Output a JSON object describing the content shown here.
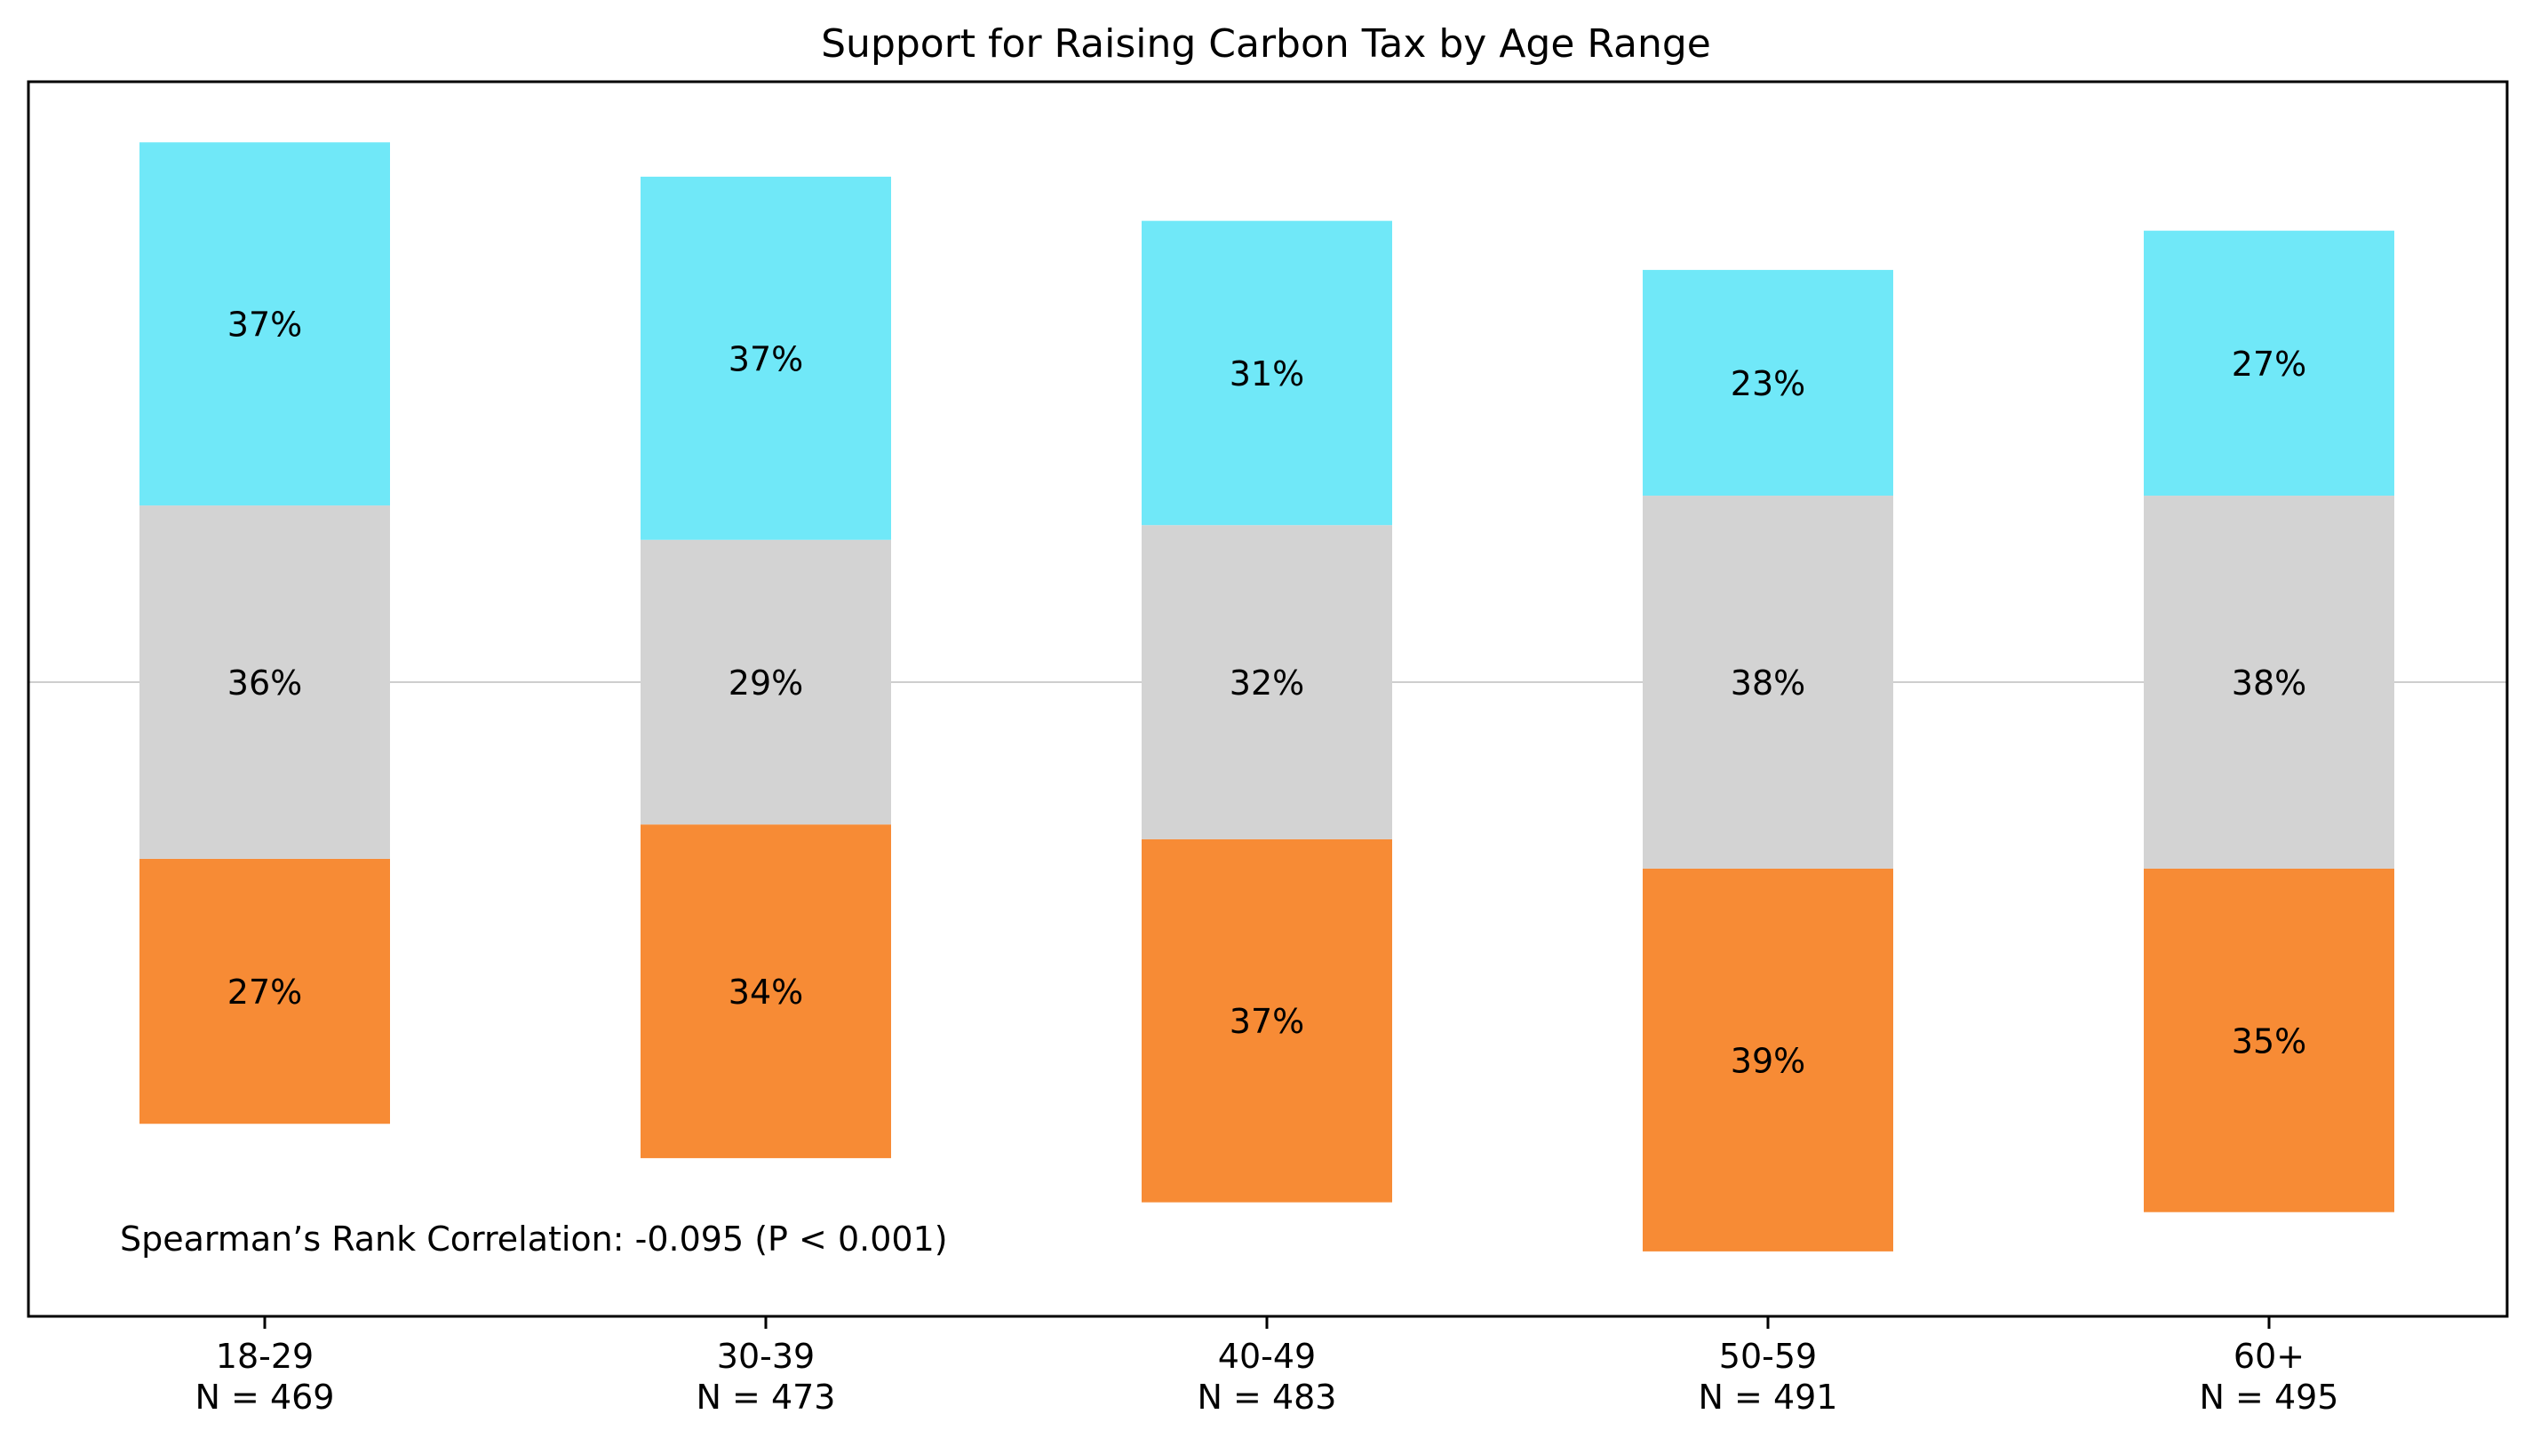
{
  "chart_data": {
    "type": "bar",
    "stacked": true,
    "diverging": true,
    "title": "Support for Raising Carbon Tax by Age Range",
    "xlabel": "",
    "ylabel": "",
    "grid": false,
    "legend": "none",
    "categories": [
      "18-29",
      "30-39",
      "40-49",
      "50-59",
      "60+"
    ],
    "sample_sizes": [
      "N = 469",
      "N = 473",
      "N = 483",
      "N = 491",
      "N = 495"
    ],
    "series": [
      {
        "values": [
          27,
          34,
          37,
          39,
          35
        ],
        "labels": [
          "27%",
          "34%",
          "37%",
          "39%",
          "35%"
        ],
        "color": "#F78B35"
      },
      {
        "values": [
          36,
          29,
          32,
          38,
          38
        ],
        "labels": [
          "36%",
          "29%",
          "32%",
          "38%",
          "38%"
        ],
        "color": "#D3D3D3"
      },
      {
        "values": [
          37,
          37,
          31,
          23,
          27
        ],
        "labels": [
          "37%",
          "37%",
          "31%",
          "23%",
          "27%"
        ],
        "color": "#70E8F8"
      }
    ],
    "annotation": "Spearman’s Rank Correlation: -0.095 (P < 0.001)"
  }
}
